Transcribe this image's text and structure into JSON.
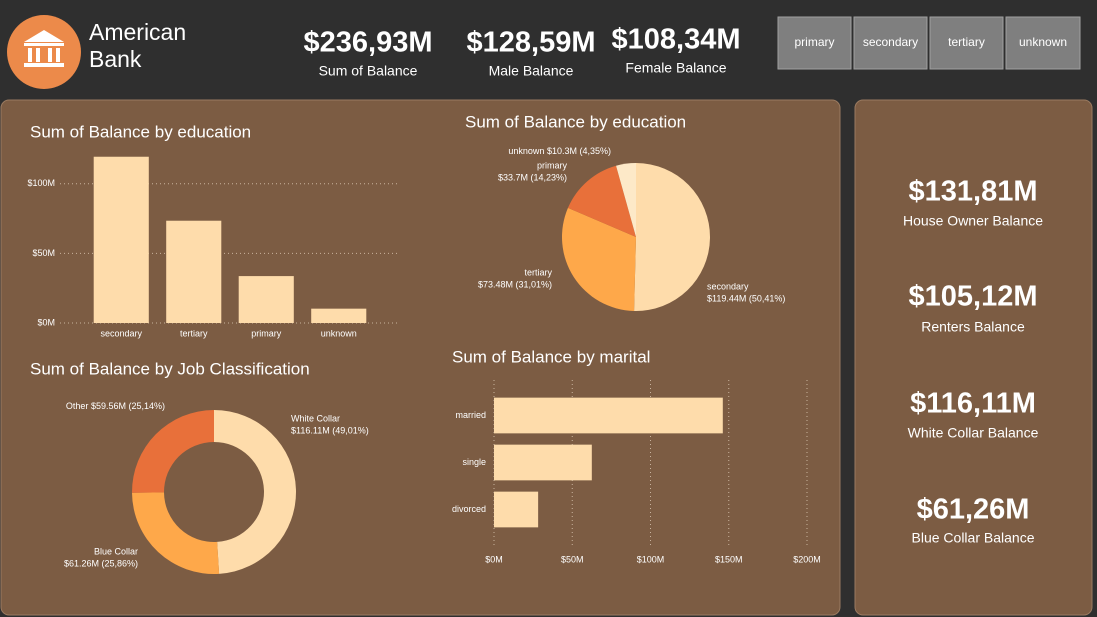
{
  "header": {
    "title_line1": "American",
    "title_line2": "Bank"
  },
  "kpis": [
    {
      "value": "$236,93M",
      "label": "Sum of Balance"
    },
    {
      "value": "$128,59M",
      "label": "Male Balance"
    },
    {
      "value": "$108,34M",
      "label": "Female Balance"
    }
  ],
  "slicers": [
    "primary",
    "secondary",
    "tertiary",
    "unknown"
  ],
  "cards": [
    {
      "value": "$131,81M",
      "label": "House Owner Balance"
    },
    {
      "value": "$105,12M",
      "label": "Renters Balance"
    },
    {
      "value": "$116,11M",
      "label": "White Collar Balance"
    },
    {
      "value": "$61,26M",
      "label": "Blue Collar Balance"
    }
  ],
  "chart_data": [
    {
      "type": "bar",
      "title": "Sum of Balance by education",
      "categories": [
        "secondary",
        "tertiary",
        "primary",
        "unknown"
      ],
      "values": [
        119.44,
        73.48,
        33.7,
        10.3
      ],
      "color": "#fedcab",
      "ylim": [
        0,
        125
      ],
      "yticks": [
        {
          "value": 0,
          "label": "$0M"
        },
        {
          "value": 50,
          "label": "$50M"
        },
        {
          "value": 100,
          "label": "$100M"
        }
      ],
      "grid": true
    },
    {
      "type": "pie",
      "title": "Sum of Balance by education",
      "categories": [
        "secondary",
        "tertiary",
        "primary",
        "unknown"
      ],
      "values": [
        119.44,
        73.48,
        33.7,
        10.3
      ],
      "value_labels": [
        "$119.44M (50,41%)",
        "$73.48M (31,01%)",
        "$33.7M (14,23%)",
        "$10.3M (4,35%)"
      ],
      "colors": [
        "#fedcab",
        "#fea84a",
        "#e8703a",
        "#fde9c8"
      ]
    },
    {
      "type": "donut",
      "title": "Sum of Balance by Job Classification",
      "categories": [
        "White Collar",
        "Blue Collar",
        "Other"
      ],
      "values": [
        116.11,
        61.26,
        59.56
      ],
      "value_labels": [
        "$116.11M (49,01%)",
        "$61.26M (25,86%)",
        "$59.56M (25,14%)"
      ],
      "colors": [
        "#fedcab",
        "#fea84a",
        "#e8703a"
      ]
    },
    {
      "type": "hbar",
      "title": "Sum of Balance by marital",
      "categories": [
        "married",
        "single",
        "divorced"
      ],
      "values": [
        146.2,
        62.5,
        28.2
      ],
      "color": "#fedcab",
      "xlim": [
        0,
        200
      ],
      "xticks": [
        {
          "value": 0,
          "label": "$0M"
        },
        {
          "value": 50,
          "label": "$50M"
        },
        {
          "value": 100,
          "label": "$100M"
        },
        {
          "value": 150,
          "label": "$150M"
        },
        {
          "value": 200,
          "label": "$200M"
        }
      ],
      "grid": true
    }
  ]
}
